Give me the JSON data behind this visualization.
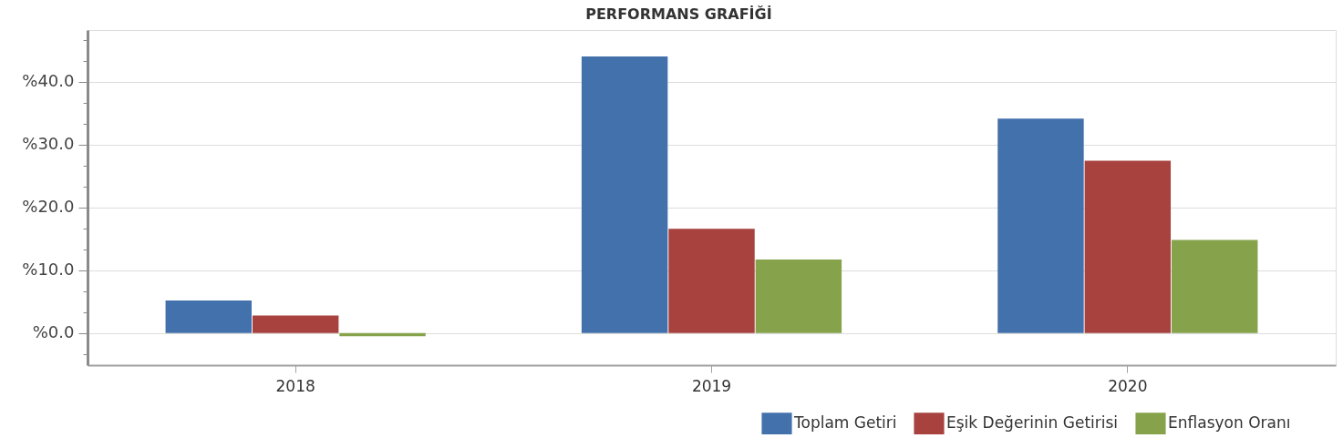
{
  "chart_data": {
    "type": "bar",
    "title": "PERFORMANS GRAFİĞİ",
    "categories": [
      "2018",
      "2019",
      "2020"
    ],
    "series": [
      {
        "name": "Toplam Getiri",
        "color": "#4371ab",
        "values": [
          5.2,
          44.0,
          34.1
        ]
      },
      {
        "name": "Eşik Değerinin Getirisi",
        "color": "#a7423f",
        "values": [
          2.8,
          16.6,
          27.4
        ]
      },
      {
        "name": "Enflasyon Oranı",
        "color": "#86a34c",
        "values": [
          -0.5,
          11.7,
          14.8
        ]
      }
    ],
    "ylim": [
      -5.1,
      48.2
    ],
    "yticks": [
      {
        "value": -3.33,
        "label": null
      },
      {
        "value": 0,
        "label": "%0.0"
      },
      {
        "value": 3.33,
        "label": null
      },
      {
        "value": 6.67,
        "label": null
      },
      {
        "value": 10,
        "label": "%10.0"
      },
      {
        "value": 13.33,
        "label": null
      },
      {
        "value": 16.67,
        "label": null
      },
      {
        "value": 20,
        "label": "%20.0"
      },
      {
        "value": 23.33,
        "label": null
      },
      {
        "value": 26.67,
        "label": null
      },
      {
        "value": 30,
        "label": "%30.0"
      },
      {
        "value": 33.33,
        "label": null
      },
      {
        "value": 36.67,
        "label": null
      },
      {
        "value": 40,
        "label": "%40.0"
      },
      {
        "value": 43.33,
        "label": null
      },
      {
        "value": 46.67,
        "label": null
      }
    ],
    "grid": "y",
    "legend": "bottom right"
  }
}
